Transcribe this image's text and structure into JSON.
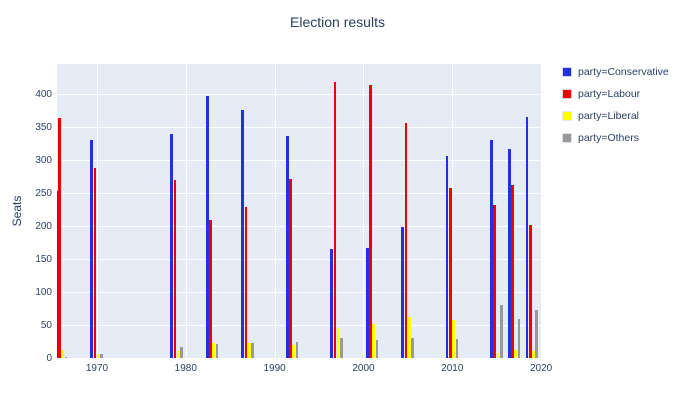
{
  "title": "Election results",
  "y_axis": {
    "label": "Seats",
    "ticks": [
      0,
      50,
      100,
      150,
      200,
      250,
      300,
      350,
      400
    ]
  },
  "x_axis": {
    "ticks": [
      1970,
      1980,
      1990,
      2000,
      2010,
      2020
    ]
  },
  "colors": {
    "plot_background": "#e5ecf6",
    "gridline": "#ffffff",
    "text": "#2a3f5f",
    "conservative": "#2331dd",
    "labour": "#ee0000",
    "liberal": "#ffff00",
    "others": "#999999"
  },
  "legend": {
    "items": [
      {
        "label": "party=Conservative",
        "color": "#2331dd"
      },
      {
        "label": "party=Labour",
        "color": "#ee0000"
      },
      {
        "label": "party=Liberal",
        "color": "#ffff00"
      },
      {
        "label": "party=Others",
        "color": "#999999"
      }
    ]
  },
  "chart_data": {
    "type": "bar",
    "title": "Election results",
    "xlabel": "",
    "ylabel": "Seats",
    "categories": [
      1966,
      1970,
      1979,
      1983,
      1987,
      1992,
      1997,
      2001,
      2005,
      2010,
      2015,
      2017,
      2019
    ],
    "series": [
      {
        "name": "Conservative",
        "color": "#2331dd",
        "values": [
          253,
          330,
          339,
          397,
          376,
          336,
          165,
          166,
          198,
          306,
          330,
          317,
          365
        ]
      },
      {
        "name": "Labour",
        "color": "#ee0000",
        "values": [
          364,
          288,
          269,
          209,
          229,
          271,
          418,
          413,
          355,
          258,
          232,
          262,
          202
        ]
      },
      {
        "name": "Liberal",
        "color": "#ffff00",
        "values": [
          12,
          6,
          11,
          23,
          22,
          20,
          46,
          52,
          62,
          57,
          8,
          12,
          11
        ]
      },
      {
        "name": "Others",
        "color": "#999999",
        "values": [
          1,
          6,
          16,
          21,
          23,
          24,
          30,
          28,
          31,
          29,
          80,
          59,
          72
        ]
      }
    ],
    "ylim": [
      0,
      445
    ],
    "xlim": [
      1965.5,
      2020.1
    ],
    "grid": true,
    "legend_position": "right"
  }
}
